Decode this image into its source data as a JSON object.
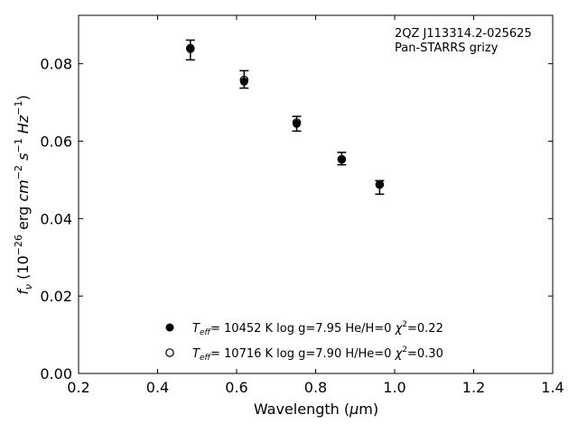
{
  "chart_data": {
    "type": "scatter",
    "annotation": [
      "2QZ J113314.2-025625",
      "Pan-STARRS grizy"
    ],
    "xlabel": "Wavelength (μm)",
    "ylabel": "f_ν (10^−26 erg cm^−2 s^−1 Hz^−1)",
    "xlim": [
      0.2,
      1.4
    ],
    "ylim": [
      0.0,
      0.0925
    ],
    "x_ticks": [
      0.2,
      0.4,
      0.6,
      0.8,
      1.0,
      1.2,
      1.4
    ],
    "x_tick_labels": [
      "0.2",
      "0.4",
      "0.6",
      "0.8",
      "1.0",
      "1.2",
      "1.4"
    ],
    "y_ticks": [
      0.0,
      0.02,
      0.04,
      0.06,
      0.08
    ],
    "y_tick_labels": [
      "0.00",
      "0.02",
      "0.04",
      "0.06",
      "0.08"
    ],
    "grid": false,
    "series": [
      {
        "marker": "filled-circle",
        "x": [
          0.483,
          0.619,
          0.752,
          0.866,
          0.962
        ],
        "y": [
          0.0838,
          0.0754,
          0.0645,
          0.0553,
          0.0488
        ],
        "yerr_low": [
          0.081,
          0.0737,
          0.0626,
          0.0539,
          0.0463
        ],
        "yerr_high": [
          0.0861,
          0.0782,
          0.0664,
          0.0571,
          0.0498
        ]
      },
      {
        "marker": "open-circle",
        "x": [
          0.483,
          0.619,
          0.752,
          0.866,
          0.962
        ],
        "y": [
          0.084,
          0.0758,
          0.0648,
          0.0553,
          0.0488
        ]
      }
    ],
    "legend": {
      "placement": "lower-center",
      "entries": [
        {
          "marker": "filled-circle",
          "teff_symbol": "T",
          "teff_sub": "eff",
          "teff_rest": "= 10452 K  log g=7.95  He/H=0  ",
          "chi_symbol": "χ",
          "chi_sup": "2",
          "chi_rest": "=0.22"
        },
        {
          "marker": "open-circle",
          "teff_symbol": "T",
          "teff_sub": "eff",
          "teff_rest": "= 10716 K  log g=7.90  H/He=0  ",
          "chi_symbol": "χ",
          "chi_sup": "2",
          "chi_rest": "=0.30"
        }
      ]
    }
  }
}
